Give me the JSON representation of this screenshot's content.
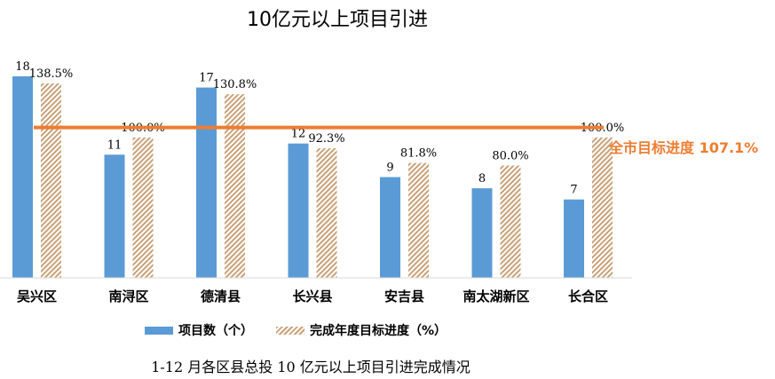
{
  "chart_data": {
    "type": "bar",
    "title": "10亿元以上项目引进",
    "categories": [
      "吴兴区",
      "南浔区",
      "德清县",
      "长兴县",
      "安吉县",
      "南太湖新区",
      "长合区"
    ],
    "series": [
      {
        "name": "项目数（个）",
        "values": [
          18,
          11,
          17,
          12,
          9,
          8,
          7
        ],
        "labels": [
          "18",
          "11",
          "17",
          "12",
          "9",
          "8",
          "7"
        ],
        "color": "#5b9bd5"
      },
      {
        "name": "完成年度目标进度（%）",
        "values": [
          138.5,
          100.0,
          130.8,
          92.3,
          81.8,
          80.0,
          100.0
        ],
        "labels": [
          "138.5%",
          "100.0%",
          "130.8%",
          "92.3%",
          "81.8%",
          "80.0%",
          "100.0%"
        ],
        "color": "#c9a178",
        "pattern": "hatched"
      }
    ],
    "reference_line": {
      "label": "全市目标进度 107.1%",
      "value": 107.1,
      "color": "#ed7d31"
    },
    "caption": "1-12 月各区县总投 10 亿元以上项目引进完成情况",
    "grid": false,
    "legend_position": "bottom"
  }
}
